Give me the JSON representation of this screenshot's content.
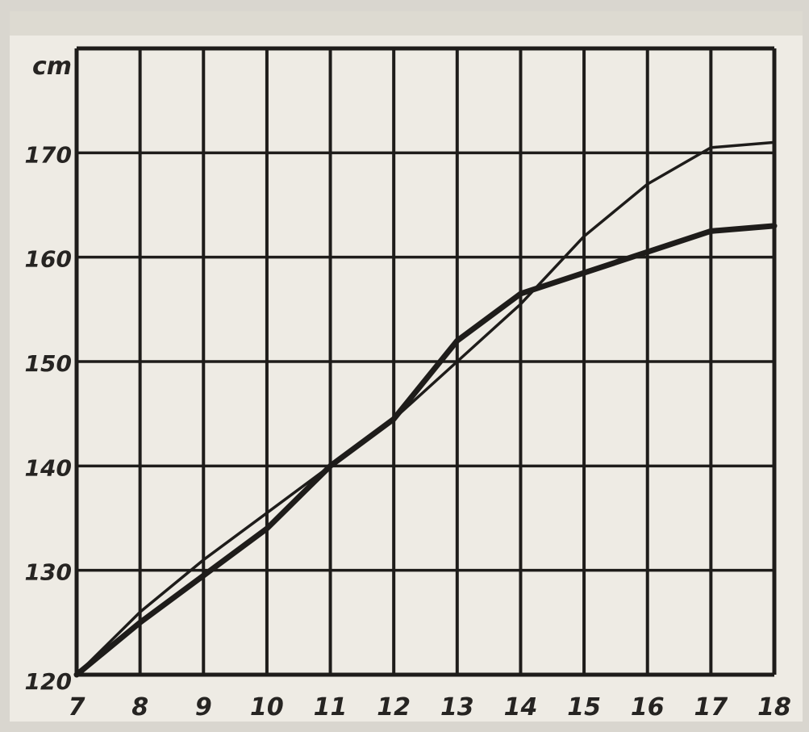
{
  "chart_data": {
    "type": "line",
    "ylabel": "cm",
    "x": [
      7,
      8,
      9,
      10,
      11,
      12,
      13,
      14,
      15,
      16,
      17,
      18
    ],
    "xticks": [
      "7",
      "8",
      "9",
      "10",
      "11",
      "12",
      "13",
      "14",
      "15",
      "16",
      "17",
      "18"
    ],
    "yticks": [
      "120",
      "130",
      "140",
      "150",
      "160",
      "170"
    ],
    "xlim": [
      7,
      18
    ],
    "ylim": [
      120,
      180
    ],
    "grid": true,
    "series": [
      {
        "style": "thin",
        "values": [
          120,
          126,
          131,
          135.5,
          140,
          144.5,
          150,
          155.5,
          162,
          167,
          170.5,
          171
        ]
      },
      {
        "style": "thick",
        "values": [
          120,
          125,
          129.5,
          134,
          140,
          144.5,
          152,
          156.5,
          158.5,
          160.5,
          162.5,
          163
        ]
      }
    ],
    "colors": {
      "ink": "#1e1c1a",
      "paper": "#eeebe4"
    }
  }
}
